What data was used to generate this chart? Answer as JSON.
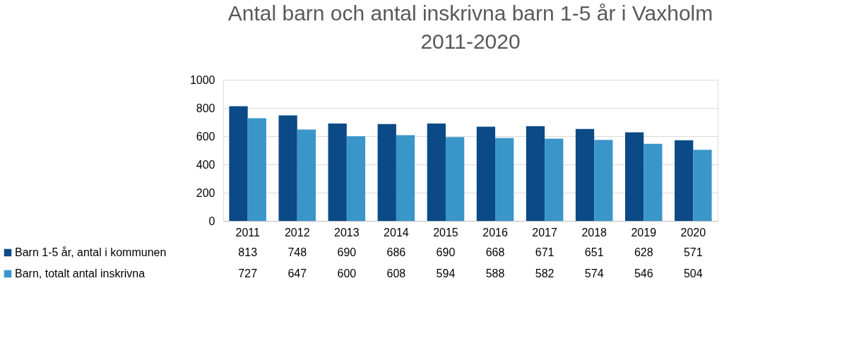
{
  "chart_data": {
    "type": "bar",
    "title": "Antal barn och antal inskrivna barn 1-5 år i Vaxholm 2011-2020",
    "categories": [
      "2011",
      "2012",
      "2013",
      "2014",
      "2015",
      "2016",
      "2017",
      "2018",
      "2019",
      "2020"
    ],
    "series": [
      {
        "name": "Barn 1-5 år, antal i kommunen",
        "color": "#0b4a86",
        "values": [
          813,
          748,
          690,
          686,
          690,
          668,
          671,
          651,
          628,
          571
        ]
      },
      {
        "name": "Barn, totalt antal inskrivna",
        "color": "#3a96c9",
        "values": [
          727,
          647,
          600,
          608,
          594,
          588,
          582,
          574,
          546,
          504
        ]
      }
    ],
    "ylim": [
      0,
      1000
    ],
    "yticks": [
      0,
      200,
      400,
      600,
      800,
      1000
    ],
    "grid": "y",
    "legend": "bottom",
    "data_labels": true
  }
}
